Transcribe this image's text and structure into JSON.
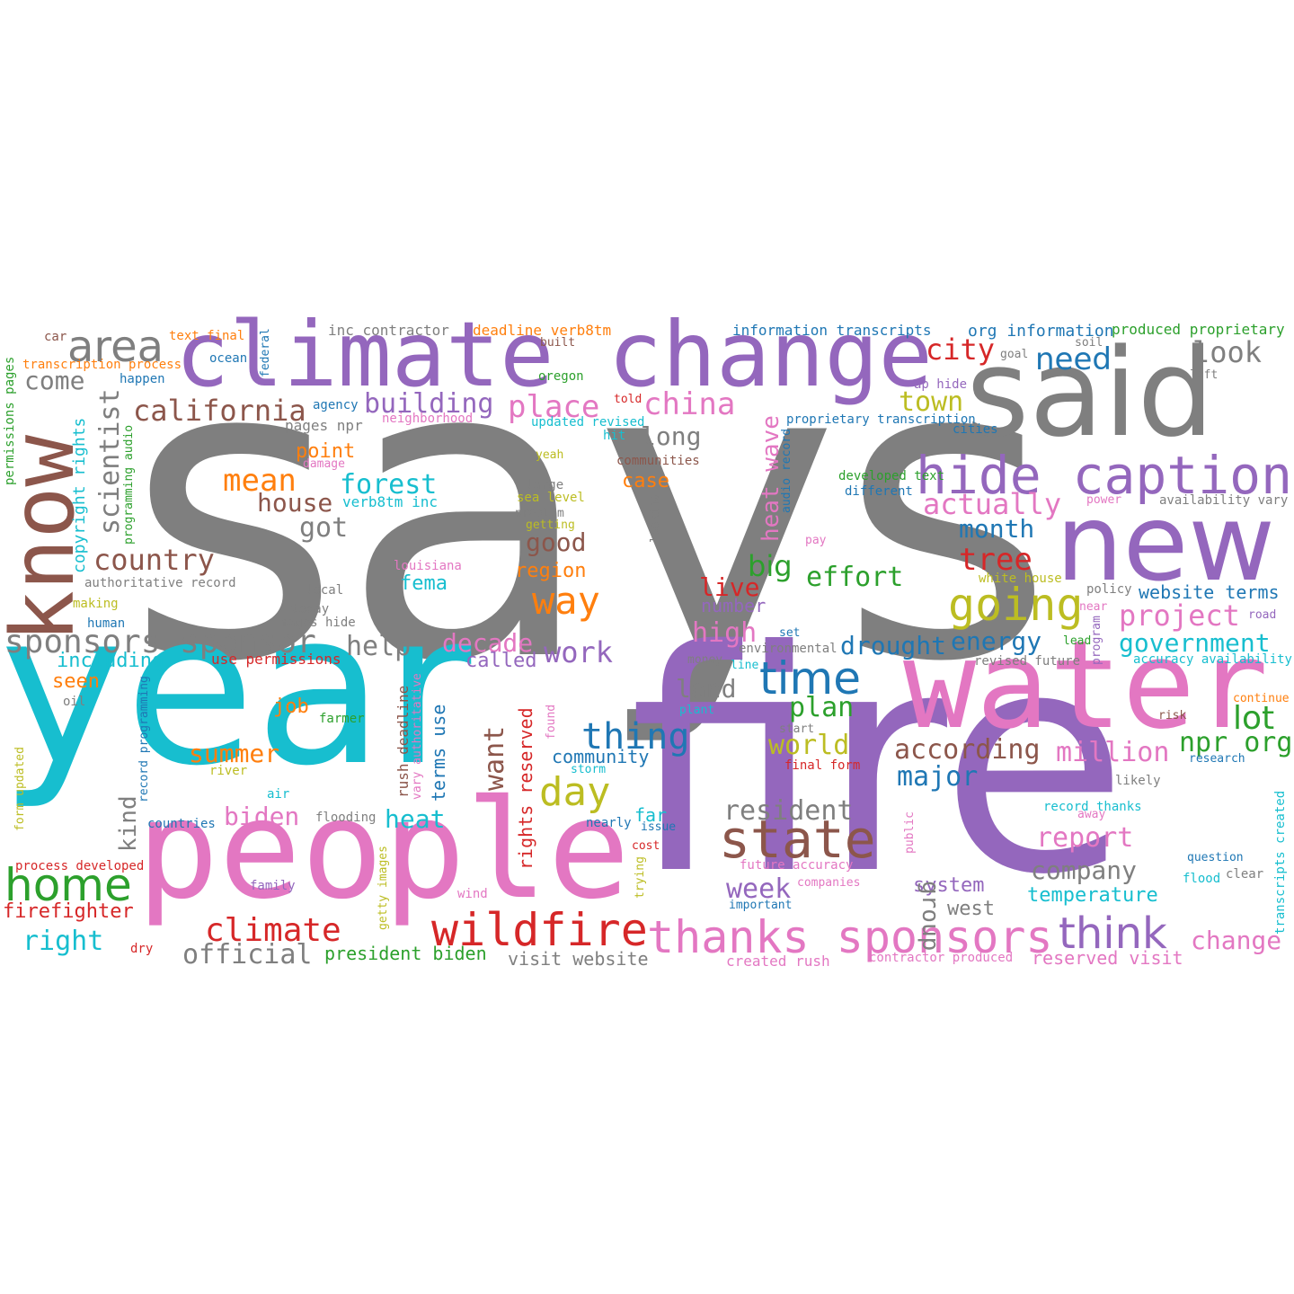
{
  "colors": {
    "gray": "#7f7f7f",
    "purple": "#9467bd",
    "cyan": "#17becf",
    "pink": "#e377c2",
    "brown": "#8c564b",
    "red": "#d62728",
    "green": "#2ca02c",
    "orange": "#ff7f0e",
    "blue": "#1f77b4",
    "olive": "#bcbd22"
  },
  "words": [
    {
      "text": "says",
      "size": 460,
      "color": "gray"
    },
    {
      "text": "fire",
      "size": 340,
      "color": "purple"
    },
    {
      "text": "year",
      "size": 235,
      "color": "cyan"
    },
    {
      "text": "people",
      "size": 152,
      "color": "pink"
    },
    {
      "text": "water",
      "size": 135,
      "color": "pink"
    },
    {
      "text": "climate change",
      "size": 100,
      "color": "purple"
    },
    {
      "text": "said",
      "size": 135,
      "color": "gray"
    },
    {
      "text": "new",
      "size": 118,
      "color": "purple"
    },
    {
      "text": "know",
      "size": 96,
      "color": "brown"
    },
    {
      "text": "hide caption",
      "size": 58,
      "color": "purple"
    },
    {
      "text": "state",
      "size": 58,
      "color": "brown"
    },
    {
      "text": "wildfire",
      "size": 50,
      "color": "red"
    },
    {
      "text": "thanks sponsors",
      "size": 50,
      "color": "pink"
    },
    {
      "text": "home",
      "size": 50,
      "color": "green"
    },
    {
      "text": "time",
      "size": 50,
      "color": "blue"
    },
    {
      "text": "going",
      "size": 50,
      "color": "olive"
    },
    {
      "text": "area",
      "size": 48,
      "color": "gray"
    },
    {
      "text": "think",
      "size": 48,
      "color": "purple"
    },
    {
      "text": "day",
      "size": 44,
      "color": "olive"
    },
    {
      "text": "way",
      "size": 42,
      "color": "orange"
    },
    {
      "text": "climate",
      "size": 36,
      "color": "red"
    },
    {
      "text": "sponsors sponsor",
      "size": 36,
      "color": "gray"
    },
    {
      "text": "thing",
      "size": 40,
      "color": "blue"
    },
    {
      "text": "place",
      "size": 34,
      "color": "pink"
    },
    {
      "text": "china",
      "size": 34,
      "color": "pink"
    },
    {
      "text": "california",
      "size": 32,
      "color": "brown"
    },
    {
      "text": "mean",
      "size": 34,
      "color": "orange"
    },
    {
      "text": "forest",
      "size": 30,
      "color": "cyan"
    },
    {
      "text": "country",
      "size": 32,
      "color": "brown"
    },
    {
      "text": "building",
      "size": 30,
      "color": "purple"
    },
    {
      "text": "actually",
      "size": 32,
      "color": "pink"
    },
    {
      "text": "need",
      "size": 34,
      "color": "blue"
    },
    {
      "text": "city",
      "size": 32,
      "color": "red"
    },
    {
      "text": "look",
      "size": 32,
      "color": "gray"
    },
    {
      "text": "town",
      "size": 30,
      "color": "olive"
    },
    {
      "text": "month",
      "size": 28,
      "color": "blue"
    },
    {
      "text": "tree",
      "size": 34,
      "color": "red"
    },
    {
      "text": "big",
      "size": 32,
      "color": "green"
    },
    {
      "text": "effort",
      "size": 30,
      "color": "green"
    },
    {
      "text": "project",
      "size": 32,
      "color": "pink"
    },
    {
      "text": "government",
      "size": 28,
      "color": "cyan"
    },
    {
      "text": "energy",
      "size": 28,
      "color": "blue"
    },
    {
      "text": "drought",
      "size": 28,
      "color": "blue"
    },
    {
      "text": "work",
      "size": 32,
      "color": "purple"
    },
    {
      "text": "decade",
      "size": 28,
      "color": "pink"
    },
    {
      "text": "high",
      "size": 30,
      "color": "pink"
    },
    {
      "text": "live",
      "size": 28,
      "color": "red"
    },
    {
      "text": "plan",
      "size": 30,
      "color": "green"
    },
    {
      "text": "world",
      "size": 30,
      "color": "olive"
    },
    {
      "text": "according",
      "size": 30,
      "color": "brown"
    },
    {
      "text": "million",
      "size": 30,
      "color": "pink"
    },
    {
      "text": "lot",
      "size": 36,
      "color": "green"
    },
    {
      "text": "npr org",
      "size": 30,
      "color": "green"
    },
    {
      "text": "major",
      "size": 30,
      "color": "blue"
    },
    {
      "text": "resident",
      "size": 30,
      "color": "gray"
    },
    {
      "text": "report",
      "size": 30,
      "color": "pink"
    },
    {
      "text": "company",
      "size": 28,
      "color": "gray"
    },
    {
      "text": "temperature",
      "size": 22,
      "color": "cyan"
    },
    {
      "text": "system",
      "size": 22,
      "color": "purple"
    },
    {
      "text": "west",
      "size": 22,
      "color": "gray"
    },
    {
      "text": "change",
      "size": 28,
      "color": "pink"
    },
    {
      "text": "week",
      "size": 30,
      "color": "purple"
    },
    {
      "text": "house",
      "size": 28,
      "color": "brown"
    },
    {
      "text": "got",
      "size": 30,
      "color": "gray"
    },
    {
      "text": "help",
      "size": 30,
      "color": "gray"
    },
    {
      "text": "come",
      "size": 28,
      "color": "gray"
    },
    {
      "text": "scientist",
      "size": 30,
      "color": "gray"
    },
    {
      "text": "summer",
      "size": 28,
      "color": "orange"
    },
    {
      "text": "biden",
      "size": 28,
      "color": "pink"
    },
    {
      "text": "heat",
      "size": 28,
      "color": "cyan"
    },
    {
      "text": "official",
      "size": 30,
      "color": "gray"
    },
    {
      "text": "right",
      "size": 30,
      "color": "cyan"
    },
    {
      "text": "firefighter",
      "size": 22,
      "color": "red"
    },
    {
      "text": "good",
      "size": 28,
      "color": "brown"
    },
    {
      "text": "region",
      "size": 22,
      "color": "orange"
    },
    {
      "text": "long",
      "size": 28,
      "color": "gray"
    },
    {
      "text": "case",
      "size": 22,
      "color": "orange"
    },
    {
      "text": "land",
      "size": 28,
      "color": "gray"
    },
    {
      "text": "community",
      "size": 20,
      "color": "blue"
    },
    {
      "text": "far",
      "size": 20,
      "color": "cyan"
    },
    {
      "text": "point",
      "size": 22,
      "color": "orange"
    },
    {
      "text": "including",
      "size": 22,
      "color": "cyan"
    },
    {
      "text": "seen",
      "size": 22,
      "color": "orange"
    },
    {
      "text": "job",
      "size": 22,
      "color": "orange"
    },
    {
      "text": "fema",
      "size": 22,
      "color": "cyan"
    },
    {
      "text": "called",
      "size": 22,
      "color": "purple"
    },
    {
      "text": "number",
      "size": 20,
      "color": "purple"
    },
    {
      "text": "website terms",
      "size": 20,
      "color": "blue"
    },
    {
      "text": "org information",
      "size": 18,
      "color": "blue"
    },
    {
      "text": "information transcripts",
      "size": 16,
      "color": "blue"
    },
    {
      "text": "inc contractor",
      "size": 16,
      "color": "gray"
    },
    {
      "text": "deadline verb8tm",
      "size": 16,
      "color": "orange"
    },
    {
      "text": "produced proprietary",
      "size": 16,
      "color": "green"
    },
    {
      "text": "text final",
      "size": 14,
      "color": "orange"
    },
    {
      "text": "car",
      "size": 14,
      "color": "brown"
    },
    {
      "text": "transcription process",
      "size": 14,
      "color": "orange"
    },
    {
      "text": "ocean",
      "size": 14,
      "color": "blue"
    },
    {
      "text": "happen",
      "size": 14,
      "color": "blue"
    },
    {
      "text": "pages npr",
      "size": 16,
      "color": "gray"
    },
    {
      "text": "president biden",
      "size": 20,
      "color": "green"
    },
    {
      "text": "visit website",
      "size": 20,
      "color": "gray"
    },
    {
      "text": "reserved visit",
      "size": 20,
      "color": "pink"
    },
    {
      "text": "verb8tm inc",
      "size": 16,
      "color": "cyan"
    },
    {
      "text": "use permissions",
      "size": 16,
      "color": "red"
    },
    {
      "text": "authoritative record",
      "size": 14,
      "color": "gray"
    },
    {
      "text": "process developed",
      "size": 14,
      "color": "red"
    },
    {
      "text": "created rush",
      "size": 16,
      "color": "pink"
    },
    {
      "text": "contractor produced",
      "size": 14,
      "color": "pink"
    },
    {
      "text": "accuracy availability",
      "size": 14,
      "color": "cyan"
    },
    {
      "text": "availability vary",
      "size": 14,
      "color": "gray"
    },
    {
      "text": "revised future",
      "size": 14,
      "color": "gray"
    },
    {
      "text": "future accuracy",
      "size": 14,
      "color": "pink"
    },
    {
      "text": "developed text",
      "size": 14,
      "color": "green"
    },
    {
      "text": "proprietary transcription",
      "size": 14,
      "color": "blue"
    },
    {
      "text": "updated revised",
      "size": 14,
      "color": "cyan"
    },
    {
      "text": "white house",
      "size": 14,
      "color": "olive"
    },
    {
      "text": "sea level",
      "size": 14,
      "color": "olive"
    },
    {
      "text": "record thanks",
      "size": 14,
      "color": "cyan"
    },
    {
      "text": "final form",
      "size": 14,
      "color": "red"
    },
    {
      "text": "images hide",
      "size": 14,
      "color": "gray"
    },
    {
      "text": "ap hide",
      "size": 14,
      "color": "purple"
    },
    {
      "text": "neighborhood",
      "size": 14,
      "color": "pink"
    },
    {
      "text": "communities",
      "size": 14,
      "color": "brown"
    },
    {
      "text": "louisiana",
      "size": 14,
      "color": "pink"
    },
    {
      "text": "environmental",
      "size": 14,
      "color": "gray"
    },
    {
      "text": "different",
      "size": 14,
      "color": "blue"
    },
    {
      "text": "cities",
      "size": 14,
      "color": "blue"
    },
    {
      "text": "oregon",
      "size": 14,
      "color": "green"
    },
    {
      "text": "agency",
      "size": 14,
      "color": "blue"
    },
    {
      "text": "built",
      "size": 13,
      "color": "brown"
    },
    {
      "text": "told",
      "size": 13,
      "color": "red"
    },
    {
      "text": "yeah",
      "size": 13,
      "color": "olive"
    },
    {
      "text": "hit",
      "size": 14,
      "color": "cyan"
    },
    {
      "text": "large",
      "size": 14,
      "color": "gray"
    },
    {
      "text": "problem",
      "size": 13,
      "color": "gray"
    },
    {
      "text": "getting",
      "size": 13,
      "color": "olive"
    },
    {
      "text": "damage",
      "size": 13,
      "color": "pink"
    },
    {
      "text": "local",
      "size": 14,
      "color": "gray"
    },
    {
      "text": "today",
      "size": 14,
      "color": "gray"
    },
    {
      "text": "making",
      "size": 14,
      "color": "olive"
    },
    {
      "text": "human",
      "size": 14,
      "color": "blue"
    },
    {
      "text": "oil",
      "size": 14,
      "color": "gray"
    },
    {
      "text": "farmer",
      "size": 14,
      "color": "green"
    },
    {
      "text": "river",
      "size": 14,
      "color": "olive"
    },
    {
      "text": "air",
      "size": 14,
      "color": "cyan"
    },
    {
      "text": "countries",
      "size": 14,
      "color": "blue"
    },
    {
      "text": "flooding",
      "size": 14,
      "color": "gray"
    },
    {
      "text": "family",
      "size": 14,
      "color": "purple"
    },
    {
      "text": "wind",
      "size": 14,
      "color": "pink"
    },
    {
      "text": "dry",
      "size": 14,
      "color": "red"
    },
    {
      "text": "money",
      "size": 13,
      "color": "gray"
    },
    {
      "text": "line",
      "size": 13,
      "color": "cyan"
    },
    {
      "text": "plant",
      "size": 13,
      "color": "cyan"
    },
    {
      "text": "start",
      "size": 13,
      "color": "gray"
    },
    {
      "text": "set",
      "size": 13,
      "color": "blue"
    },
    {
      "text": "storm",
      "size": 13,
      "color": "cyan"
    },
    {
      "text": "nearly",
      "size": 14,
      "color": "blue"
    },
    {
      "text": "issue",
      "size": 13,
      "color": "blue"
    },
    {
      "text": "cost",
      "size": 13,
      "color": "red"
    },
    {
      "text": "companies",
      "size": 13,
      "color": "pink"
    },
    {
      "text": "important",
      "size": 13,
      "color": "blue"
    },
    {
      "text": "pay",
      "size": 13,
      "color": "pink"
    },
    {
      "text": "power",
      "size": 13,
      "color": "pink"
    },
    {
      "text": "policy",
      "size": 14,
      "color": "gray"
    },
    {
      "text": "near",
      "size": 13,
      "color": "pink"
    },
    {
      "text": "lead",
      "size": 13,
      "color": "green"
    },
    {
      "text": "road",
      "size": 13,
      "color": "purple"
    },
    {
      "text": "goal",
      "size": 13,
      "color": "gray"
    },
    {
      "text": "soil",
      "size": 13,
      "color": "gray"
    },
    {
      "text": "left",
      "size": 13,
      "color": "gray"
    },
    {
      "text": "continue",
      "size": 13,
      "color": "orange"
    },
    {
      "text": "risk",
      "size": 13,
      "color": "brown"
    },
    {
      "text": "research",
      "size": 13,
      "color": "blue"
    },
    {
      "text": "likely",
      "size": 14,
      "color": "gray"
    },
    {
      "text": "away",
      "size": 13,
      "color": "pink"
    },
    {
      "text": "question",
      "size": 13,
      "color": "blue"
    },
    {
      "text": "flood",
      "size": 14,
      "color": "cyan"
    },
    {
      "text": "clear",
      "size": 14,
      "color": "gray"
    },
    {
      "text": "heat wave",
      "size": 26,
      "color": "pink"
    },
    {
      "text": "kind",
      "size": 26,
      "color": "gray"
    },
    {
      "text": "want",
      "size": 30,
      "color": "brown"
    },
    {
      "text": "group",
      "size": 26,
      "color": "gray"
    },
    {
      "text": "rights reserved",
      "size": 20,
      "color": "red"
    },
    {
      "text": "terms use",
      "size": 20,
      "color": "blue"
    },
    {
      "text": "rush deadline",
      "size": 16,
      "color": "brown"
    },
    {
      "text": "copyright rights",
      "size": 18,
      "color": "cyan"
    },
    {
      "text": "permissions pages",
      "size": 14,
      "color": "green"
    },
    {
      "text": "programming audio",
      "size": 13,
      "color": "green"
    },
    {
      "text": "record programming",
      "size": 13,
      "color": "blue"
    },
    {
      "text": "form updated",
      "size": 13,
      "color": "olive"
    },
    {
      "text": "vary authoritative",
      "size": 13,
      "color": "pink"
    },
    {
      "text": "getty images",
      "size": 13,
      "color": "olive"
    },
    {
      "text": "trying",
      "size": 13,
      "color": "olive"
    },
    {
      "text": "found",
      "size": 13,
      "color": "pink"
    },
    {
      "text": "looking",
      "size": 13,
      "color": "gray"
    },
    {
      "text": "audio record",
      "size": 13,
      "color": "blue"
    },
    {
      "text": "federal",
      "size": 13,
      "color": "blue"
    },
    {
      "text": "public",
      "size": 13,
      "color": "pink"
    },
    {
      "text": "program",
      "size": 13,
      "color": "purple"
    },
    {
      "text": "transcripts created",
      "size": 14,
      "color": "cyan"
    }
  ]
}
